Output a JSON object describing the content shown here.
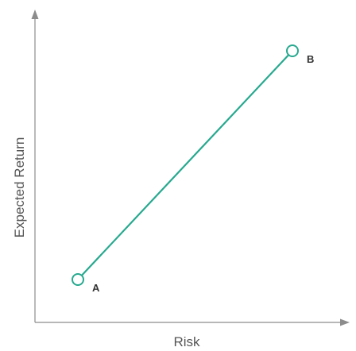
{
  "chart_data": {
    "type": "line",
    "title": "",
    "xlabel": "Risk",
    "ylabel": "Expected Return",
    "grid": false,
    "legend": "none",
    "series": [
      {
        "points": [
          {
            "label": "A",
            "x": 1.5,
            "y": 1.5
          },
          {
            "label": "B",
            "x": 9.0,
            "y": 9.5
          }
        ]
      }
    ],
    "xlim": [
      0,
      10.5
    ],
    "ylim": [
      0,
      10.5
    ],
    "colors": {
      "line": "#27a98f",
      "marker_fill": "#ffffff"
    }
  }
}
